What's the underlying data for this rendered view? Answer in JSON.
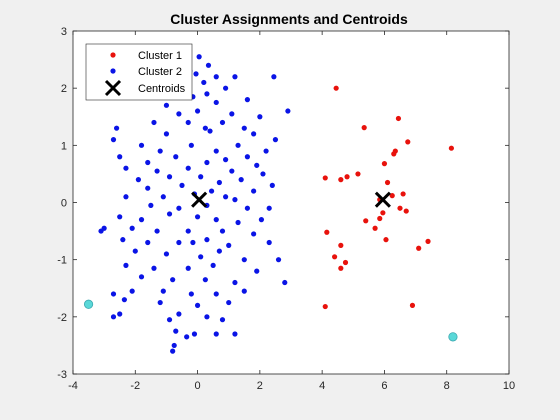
{
  "chart_data": {
    "type": "scatter",
    "title": "Cluster Assignments and Centroids",
    "xlabel": "",
    "ylabel": "",
    "xlim": [
      -4,
      10
    ],
    "ylim": [
      -3,
      3
    ],
    "xticks": [
      -4,
      -2,
      0,
      2,
      4,
      6,
      8,
      10
    ],
    "yticks": [
      -3,
      -2,
      -1,
      0,
      1,
      2,
      3
    ],
    "grid": false,
    "legend_position": "top-left",
    "colors": {
      "cluster1": "#e8120c",
      "cluster2": "#0a14e6",
      "centroids": "#000000",
      "outliers": "#5ad8d8",
      "axes": "#262626",
      "background": "#f0f0f0",
      "plot_area": "#ffffff"
    },
    "legend": [
      {
        "label": "Cluster 1",
        "marker": "dot",
        "color": "#e8120c"
      },
      {
        "label": "Cluster 2",
        "marker": "dot",
        "color": "#0a14e6"
      },
      {
        "label": "Centroids",
        "marker": "x",
        "color": "#000000"
      }
    ],
    "series": [
      {
        "name": "Cluster 1",
        "marker": "dot",
        "points": [
          [
            4.45,
            2.0
          ],
          [
            6.45,
            1.47
          ],
          [
            5.35,
            1.31
          ],
          [
            6.75,
            1.06
          ],
          [
            6.35,
            0.9
          ],
          [
            6.3,
            0.85
          ],
          [
            6.0,
            0.68
          ],
          [
            8.15,
            0.95
          ],
          [
            4.1,
            0.43
          ],
          [
            4.6,
            0.4
          ],
          [
            4.8,
            0.45
          ],
          [
            5.15,
            0.5
          ],
          [
            6.1,
            0.35
          ],
          [
            5.85,
            0.05
          ],
          [
            6.6,
            0.15
          ],
          [
            6.25,
            0.12
          ],
          [
            6.5,
            -0.1
          ],
          [
            5.95,
            -0.18
          ],
          [
            5.4,
            -0.32
          ],
          [
            6.7,
            -0.15
          ],
          [
            5.7,
            -0.45
          ],
          [
            5.85,
            -0.28
          ],
          [
            4.15,
            -0.52
          ],
          [
            4.6,
            -0.75
          ],
          [
            6.05,
            -0.65
          ],
          [
            7.4,
            -0.68
          ],
          [
            7.1,
            -0.8
          ],
          [
            4.4,
            -0.95
          ],
          [
            4.75,
            -1.05
          ],
          [
            4.6,
            -1.15
          ],
          [
            4.1,
            -1.82
          ],
          [
            6.9,
            -1.8
          ]
        ]
      },
      {
        "name": "Cluster 2",
        "marker": "dot",
        "points": [
          [
            0.05,
            2.55
          ],
          [
            0.35,
            2.4
          ],
          [
            -0.25,
            2.3
          ],
          [
            2.45,
            2.2
          ],
          [
            -0.05,
            2.25
          ],
          [
            0.6,
            2.2
          ],
          [
            1.2,
            2.2
          ],
          [
            -0.5,
            2.0
          ],
          [
            0.2,
            2.1
          ],
          [
            0.9,
            2.0
          ],
          [
            0.3,
            1.9
          ],
          [
            -0.15,
            1.85
          ],
          [
            1.6,
            1.8
          ],
          [
            2.9,
            1.6
          ],
          [
            -1.0,
            1.7
          ],
          [
            0.6,
            1.75
          ],
          [
            -0.6,
            1.55
          ],
          [
            0.0,
            1.6
          ],
          [
            1.1,
            1.55
          ],
          [
            2.0,
            1.5
          ],
          [
            -1.4,
            1.4
          ],
          [
            -0.3,
            1.4
          ],
          [
            0.8,
            1.4
          ],
          [
            1.5,
            1.3
          ],
          [
            2.5,
            1.1
          ],
          [
            -2.6,
            1.3
          ],
          [
            -1.8,
            1.0
          ],
          [
            -1.0,
            1.2
          ],
          [
            0.4,
            1.25
          ],
          [
            1.8,
            1.2
          ],
          [
            -2.7,
            1.1
          ],
          [
            -1.2,
            0.9
          ],
          [
            -0.2,
            1.0
          ],
          [
            0.6,
            0.9
          ],
          [
            1.3,
            1.0
          ],
          [
            2.2,
            0.9
          ],
          [
            -2.5,
            0.8
          ],
          [
            -1.6,
            0.7
          ],
          [
            -0.7,
            0.8
          ],
          [
            0.9,
            0.75
          ],
          [
            1.6,
            0.8
          ],
          [
            -2.3,
            0.6
          ],
          [
            -1.3,
            0.55
          ],
          [
            -0.3,
            0.6
          ],
          [
            0.3,
            0.7
          ],
          [
            1.1,
            0.55
          ],
          [
            2.1,
            0.5
          ],
          [
            -1.9,
            0.4
          ],
          [
            -0.9,
            0.45
          ],
          [
            0.1,
            0.45
          ],
          [
            0.7,
            0.35
          ],
          [
            1.4,
            0.4
          ],
          [
            2.4,
            0.3
          ],
          [
            -1.6,
            0.25
          ],
          [
            -0.5,
            0.3
          ],
          [
            0.45,
            0.2
          ],
          [
            1.8,
            0.2
          ],
          [
            -2.3,
            0.1
          ],
          [
            -1.1,
            0.1
          ],
          [
            -0.1,
            0.15
          ],
          [
            0.9,
            0.1
          ],
          [
            1.2,
            0.05
          ],
          [
            -1.5,
            -0.05
          ],
          [
            -0.6,
            -0.1
          ],
          [
            0.3,
            -0.05
          ],
          [
            1.6,
            -0.1
          ],
          [
            2.3,
            -0.1
          ],
          [
            -2.5,
            -0.25
          ],
          [
            -1.8,
            -0.3
          ],
          [
            -0.9,
            -0.2
          ],
          [
            0.0,
            -0.25
          ],
          [
            0.6,
            -0.3
          ],
          [
            1.3,
            -0.35
          ],
          [
            2.05,
            -0.3
          ],
          [
            -3.0,
            -0.45
          ],
          [
            -2.1,
            -0.45
          ],
          [
            -1.3,
            -0.5
          ],
          [
            -0.3,
            -0.5
          ],
          [
            0.8,
            -0.5
          ],
          [
            1.8,
            -0.55
          ],
          [
            -2.4,
            -0.65
          ],
          [
            -1.6,
            -0.7
          ],
          [
            -0.6,
            -0.7
          ],
          [
            0.3,
            -0.65
          ],
          [
            1.0,
            -0.75
          ],
          [
            2.3,
            -0.7
          ],
          [
            -2.0,
            -0.85
          ],
          [
            -1.0,
            -0.9
          ],
          [
            0.1,
            -0.95
          ],
          [
            0.7,
            -0.85
          ],
          [
            1.5,
            -1.0
          ],
          [
            2.6,
            -1.0
          ],
          [
            -2.3,
            -1.1
          ],
          [
            -1.4,
            -1.15
          ],
          [
            -0.3,
            -1.15
          ],
          [
            0.5,
            -1.1
          ],
          [
            1.9,
            -1.2
          ],
          [
            -1.8,
            -1.3
          ],
          [
            -0.8,
            -1.35
          ],
          [
            0.25,
            -1.35
          ],
          [
            1.2,
            -1.4
          ],
          [
            2.8,
            -1.4
          ],
          [
            -2.1,
            -1.55
          ],
          [
            -1.1,
            -1.55
          ],
          [
            -0.2,
            -1.6
          ],
          [
            0.6,
            -1.6
          ],
          [
            1.5,
            -1.55
          ],
          [
            -2.7,
            -1.6
          ],
          [
            -1.2,
            -1.75
          ],
          [
            0.0,
            -1.8
          ],
          [
            1.0,
            -1.75
          ],
          [
            -2.35,
            -1.7
          ],
          [
            -0.6,
            -1.95
          ],
          [
            0.3,
            -2.0
          ],
          [
            -2.5,
            -1.95
          ],
          [
            -0.9,
            -2.05
          ],
          [
            0.8,
            -2.05
          ],
          [
            -0.1,
            -2.3
          ],
          [
            -0.7,
            -2.25
          ],
          [
            0.6,
            -2.3
          ],
          [
            1.2,
            -2.3
          ],
          [
            -0.75,
            -2.5
          ],
          [
            -0.8,
            -2.6
          ],
          [
            -0.35,
            -2.35
          ],
          [
            -2.7,
            -2.0
          ],
          [
            -3.1,
            -0.5
          ],
          [
            -0.4,
            1.9
          ],
          [
            0.25,
            1.3
          ],
          [
            1.9,
            0.65
          ],
          [
            -0.15,
            -0.7
          ]
        ]
      },
      {
        "name": "Centroids",
        "marker": "x",
        "points": [
          [
            0.05,
            0.05
          ],
          [
            5.95,
            0.05
          ]
        ]
      },
      {
        "name": "",
        "marker": "circle",
        "points": [
          [
            -3.5,
            -1.78
          ],
          [
            8.2,
            -2.35
          ]
        ]
      }
    ]
  }
}
